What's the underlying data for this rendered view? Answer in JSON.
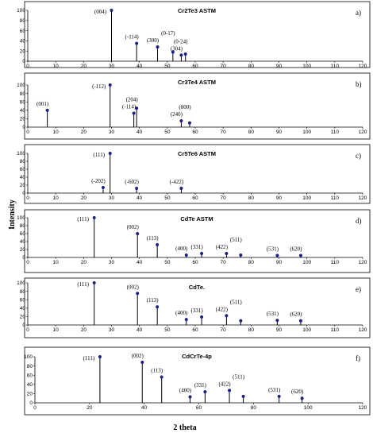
{
  "figure": {
    "ylabel": "Intensity",
    "xlabel": "2 theta"
  },
  "chart_data": [
    {
      "type": "bar",
      "title": "Cr2Te3 ASTM",
      "panel_label": "a)",
      "xlim": [
        0,
        120
      ],
      "ylim": [
        0,
        100
      ],
      "xticks": [
        0,
        10,
        20,
        30,
        40,
        50,
        60,
        70,
        80,
        90,
        100,
        110,
        120
      ],
      "yticks": [
        0,
        20,
        40,
        60,
        80,
        100
      ],
      "peaks": [
        {
          "x": 30.0,
          "y": 100,
          "label": "(004)"
        },
        {
          "x": 39.0,
          "y": 35,
          "label": "(-114)"
        },
        {
          "x": 46.5,
          "y": 28,
          "label": "(300)"
        },
        {
          "x": 52.0,
          "y": 18,
          "label": "(0-17)"
        },
        {
          "x": 55.0,
          "y": 12,
          "label": "(304)"
        },
        {
          "x": 56.5,
          "y": 14,
          "label": "(0-24)"
        }
      ]
    },
    {
      "type": "bar",
      "title": "Cr3Te4 ASTM",
      "panel_label": "b)",
      "xlim": [
        0,
        120
      ],
      "ylim": [
        0,
        100
      ],
      "xticks": [
        0,
        10,
        20,
        30,
        40,
        50,
        60,
        70,
        80,
        90,
        100,
        110,
        120
      ],
      "yticks": [
        0,
        20,
        40,
        60,
        80,
        100
      ],
      "peaks": [
        {
          "x": 7.0,
          "y": 40,
          "label": "(001)"
        },
        {
          "x": 29.5,
          "y": 100,
          "label": "(-112)"
        },
        {
          "x": 38.0,
          "y": 33,
          "label": "(-114)"
        },
        {
          "x": 39.0,
          "y": 45,
          "label": "(204)"
        },
        {
          "x": 55.0,
          "y": 15,
          "label": "(240)"
        },
        {
          "x": 58.0,
          "y": 10,
          "label": "(800)"
        }
      ]
    },
    {
      "type": "bar",
      "title": "Cr5Te6 ASTM",
      "panel_label": "c)",
      "xlim": [
        0,
        120
      ],
      "ylim": [
        0,
        100
      ],
      "xticks": [
        0,
        10,
        20,
        30,
        40,
        50,
        60,
        70,
        80,
        90,
        100,
        110,
        120
      ],
      "yticks": [
        0,
        20,
        40,
        60,
        80,
        100
      ],
      "peaks": [
        {
          "x": 27.0,
          "y": 14,
          "label": "(-202)"
        },
        {
          "x": 29.5,
          "y": 100,
          "label": "(111)"
        },
        {
          "x": 39.0,
          "y": 12,
          "label": "(-602)"
        },
        {
          "x": 55.0,
          "y": 12,
          "label": "(-422)"
        }
      ]
    },
    {
      "type": "bar",
      "title": "CdTe ASTM",
      "panel_label": "d)",
      "xlim": [
        0,
        120
      ],
      "ylim": [
        0,
        100
      ],
      "xticks": [
        0,
        10,
        20,
        30,
        40,
        50,
        60,
        70,
        80,
        90,
        100,
        110,
        120
      ],
      "yticks": [
        0,
        20,
        40,
        60,
        80,
        100
      ],
      "peaks": [
        {
          "x": 23.8,
          "y": 100,
          "label": "(111)"
        },
        {
          "x": 39.3,
          "y": 60,
          "label": "(002)"
        },
        {
          "x": 46.4,
          "y": 32,
          "label": "(113)"
        },
        {
          "x": 56.8,
          "y": 6,
          "label": "(400)"
        },
        {
          "x": 62.3,
          "y": 10,
          "label": "(331)"
        },
        {
          "x": 71.2,
          "y": 10,
          "label": "(422)"
        },
        {
          "x": 76.3,
          "y": 6,
          "label": "(511)"
        },
        {
          "x": 89.4,
          "y": 5,
          "label": "(531)"
        },
        {
          "x": 97.8,
          "y": 5,
          "label": "(620)"
        }
      ]
    },
    {
      "type": "bar",
      "title": "CdTe.",
      "panel_label": "e)",
      "xlim": [
        0,
        120
      ],
      "ylim": [
        0,
        100
      ],
      "xticks": [
        0,
        10,
        20,
        30,
        40,
        50,
        60,
        70,
        80,
        90,
        100,
        110,
        120
      ],
      "yticks": [
        0,
        20,
        40,
        60,
        80,
        100
      ],
      "peaks": [
        {
          "x": 23.8,
          "y": 100,
          "label": "(111)"
        },
        {
          "x": 39.3,
          "y": 75,
          "label": "(002)"
        },
        {
          "x": 46.4,
          "y": 43,
          "label": "(113)"
        },
        {
          "x": 56.8,
          "y": 13,
          "label": "(400)"
        },
        {
          "x": 62.3,
          "y": 19,
          "label": "(331)"
        },
        {
          "x": 71.2,
          "y": 22,
          "label": "(422)"
        },
        {
          "x": 76.3,
          "y": 10,
          "label": "(511)"
        },
        {
          "x": 89.4,
          "y": 11,
          "label": "(531)"
        },
        {
          "x": 97.8,
          "y": 10,
          "label": "(620)"
        }
      ]
    },
    {
      "type": "bar",
      "title": "CdCrTe-4p",
      "panel_label": "f)",
      "xlim": [
        0,
        120
      ],
      "ylim": [
        0,
        100
      ],
      "xticks": [
        0,
        20,
        40,
        60,
        80,
        100,
        120
      ],
      "yticks": [
        0,
        20,
        40,
        60,
        80,
        100
      ],
      "peaks": [
        {
          "x": 23.8,
          "y": 100,
          "label": "(111)"
        },
        {
          "x": 39.3,
          "y": 88,
          "label": "(002)"
        },
        {
          "x": 46.4,
          "y": 56,
          "label": "(113)"
        },
        {
          "x": 56.8,
          "y": 13,
          "label": "(400)"
        },
        {
          "x": 62.3,
          "y": 24,
          "label": "(331)"
        },
        {
          "x": 71.2,
          "y": 27,
          "label": "(422)"
        },
        {
          "x": 76.3,
          "y": 14,
          "label": "(511)"
        },
        {
          "x": 89.4,
          "y": 14,
          "label": "(531)"
        },
        {
          "x": 97.8,
          "y": 10,
          "label": "(620)"
        }
      ]
    }
  ]
}
